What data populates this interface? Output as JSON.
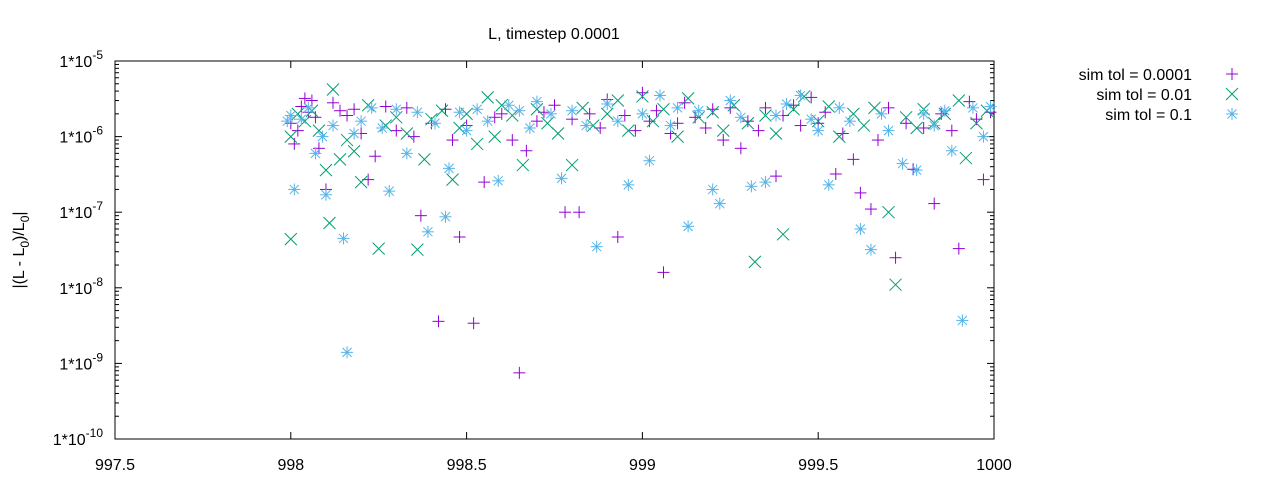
{
  "chart_data": {
    "type": "scatter",
    "title": "L, timestep 0.0001",
    "xlabel": "",
    "ylabel": {
      "prefix": "|(L - L",
      "sub1": "0",
      "mid": ")/L",
      "sub2": "0",
      "suffix": "|"
    },
    "xlim": [
      997.5,
      1000
    ],
    "ylim": [
      1e-10,
      1e-05
    ],
    "yscale": "log",
    "grid": false,
    "legend_position": "outside-right",
    "x_ticks": [
      {
        "value": 997.5,
        "label": "997.5"
      },
      {
        "value": 998,
        "label": "998"
      },
      {
        "value": 998.5,
        "label": "998.5"
      },
      {
        "value": 999,
        "label": "999"
      },
      {
        "value": 999.5,
        "label": "999.5"
      },
      {
        "value": 1000,
        "label": "1000"
      }
    ],
    "y_ticks": [
      {
        "value": 1e-10,
        "base": "1*10",
        "exp": "-10"
      },
      {
        "value": 1e-09,
        "base": "1*10",
        "exp": "-9"
      },
      {
        "value": 1e-08,
        "base": "1*10",
        "exp": "-8"
      },
      {
        "value": 1e-07,
        "base": "1*10",
        "exp": "-7"
      },
      {
        "value": 1e-06,
        "base": "1*10",
        "exp": "-6"
      },
      {
        "value": 1e-05,
        "base": "1*10",
        "exp": "-5"
      }
    ],
    "series": [
      {
        "name": "sim tol = 0.0001",
        "marker": "plus",
        "color": "#9400d3",
        "points": [
          [
            998.0,
            1.5e-06
          ],
          [
            998.01,
            8e-07
          ],
          [
            998.02,
            1.2e-06
          ],
          [
            998.03,
            2.5e-06
          ],
          [
            998.04,
            3.2e-06
          ],
          [
            998.05,
            2.1e-06
          ],
          [
            998.06,
            3e-06
          ],
          [
            998.07,
            1.8e-06
          ],
          [
            998.08,
            7e-07
          ],
          [
            998.1,
            2e-07
          ],
          [
            998.12,
            2.8e-06
          ],
          [
            998.14,
            2.2e-06
          ],
          [
            998.16,
            1.9e-06
          ],
          [
            998.18,
            2.3e-06
          ],
          [
            998.2,
            1.1e-06
          ],
          [
            998.22,
            2.7e-07
          ],
          [
            998.24,
            5.5e-07
          ],
          [
            998.27,
            2.5e-06
          ],
          [
            998.3,
            1.2e-06
          ],
          [
            998.33,
            2.4e-06
          ],
          [
            998.35,
            1e-06
          ],
          [
            998.37,
            9e-08
          ],
          [
            998.4,
            1.5e-06
          ],
          [
            998.42,
            3.6e-09
          ],
          [
            998.44,
            2.3e-06
          ],
          [
            998.46,
            9e-07
          ],
          [
            998.48,
            4.7e-08
          ],
          [
            998.5,
            1.4e-06
          ],
          [
            998.52,
            3.4e-09
          ],
          [
            998.55,
            2.5e-07
          ],
          [
            998.58,
            1.8e-06
          ],
          [
            998.6,
            2e-06
          ],
          [
            998.63,
            9e-07
          ],
          [
            998.65,
            7.5e-10
          ],
          [
            998.67,
            6.5e-07
          ],
          [
            998.7,
            1.6e-06
          ],
          [
            998.72,
            2.1e-06
          ],
          [
            998.75,
            2.6e-06
          ],
          [
            998.78,
            1e-07
          ],
          [
            998.8,
            1.7e-06
          ],
          [
            998.82,
            1e-07
          ],
          [
            998.85,
            2e-06
          ],
          [
            998.88,
            1.3e-06
          ],
          [
            998.9,
            3.1e-06
          ],
          [
            998.93,
            4.7e-08
          ],
          [
            998.95,
            1.9e-06
          ],
          [
            998.98,
            1.2e-06
          ],
          [
            999.0,
            3.8e-06
          ],
          [
            999.02,
            1.6e-06
          ],
          [
            999.04,
            2.2e-06
          ],
          [
            999.06,
            1.6e-08
          ],
          [
            999.08,
            1.1e-06
          ],
          [
            999.1,
            1.5e-06
          ],
          [
            999.12,
            2.8e-06
          ],
          [
            999.15,
            1.8e-06
          ],
          [
            999.18,
            1.3e-06
          ],
          [
            999.2,
            2.3e-06
          ],
          [
            999.23,
            9e-07
          ],
          [
            999.25,
            2.4e-06
          ],
          [
            999.28,
            7e-07
          ],
          [
            999.3,
            1.6e-06
          ],
          [
            999.33,
            1.2e-06
          ],
          [
            999.35,
            2.4e-06
          ],
          [
            999.38,
            3e-07
          ],
          [
            999.4,
            1.9e-06
          ],
          [
            999.43,
            2.6e-06
          ],
          [
            999.45,
            1.4e-06
          ],
          [
            999.48,
            3.3e-06
          ],
          [
            999.5,
            1.5e-06
          ],
          [
            999.52,
            2.1e-06
          ],
          [
            999.55,
            3.2e-07
          ],
          [
            999.57,
            1.1e-06
          ],
          [
            999.6,
            5e-07
          ],
          [
            999.62,
            1.8e-07
          ],
          [
            999.65,
            1.1e-07
          ],
          [
            999.67,
            9e-07
          ],
          [
            999.7,
            2.4e-06
          ],
          [
            999.72,
            2.5e-08
          ],
          [
            999.75,
            1.5e-06
          ],
          [
            999.77,
            3.7e-07
          ],
          [
            999.8,
            1.3e-06
          ],
          [
            999.83,
            1.3e-07
          ],
          [
            999.85,
            2e-06
          ],
          [
            999.88,
            1.2e-06
          ],
          [
            999.9,
            3.3e-08
          ],
          [
            999.93,
            2.9e-06
          ],
          [
            999.95,
            1.7e-06
          ],
          [
            999.97,
            2.7e-07
          ],
          [
            999.99,
            2.1e-06
          ]
        ]
      },
      {
        "name": "sim tol = 0.01",
        "marker": "cross",
        "color": "#009e73",
        "points": [
          [
            998.0,
            1e-06
          ],
          [
            998.0,
            4.4e-08
          ],
          [
            998.02,
            2e-06
          ],
          [
            998.04,
            1.6e-06
          ],
          [
            998.06,
            2.2e-06
          ],
          [
            998.08,
            1.2e-06
          ],
          [
            998.1,
            3.6e-07
          ],
          [
            998.11,
            7.2e-08
          ],
          [
            998.12,
            4.2e-06
          ],
          [
            998.14,
            5e-07
          ],
          [
            998.16,
            9e-07
          ],
          [
            998.18,
            6.4e-07
          ],
          [
            998.2,
            2.5e-07
          ],
          [
            998.22,
            2.6e-06
          ],
          [
            998.25,
            3.3e-08
          ],
          [
            998.27,
            1.4e-06
          ],
          [
            998.3,
            1.8e-06
          ],
          [
            998.33,
            1.1e-06
          ],
          [
            998.36,
            3.2e-08
          ],
          [
            998.38,
            5e-07
          ],
          [
            998.4,
            1.7e-06
          ],
          [
            998.43,
            2.2e-06
          ],
          [
            998.46,
            2.7e-07
          ],
          [
            998.48,
            1.3e-06
          ],
          [
            998.5,
            2e-06
          ],
          [
            998.53,
            8e-07
          ],
          [
            998.56,
            3.3e-06
          ],
          [
            998.58,
            1e-06
          ],
          [
            998.6,
            2.6e-06
          ],
          [
            998.63,
            1.9e-06
          ],
          [
            998.66,
            4.2e-07
          ],
          [
            998.7,
            2.3e-06
          ],
          [
            998.73,
            1.5e-06
          ],
          [
            998.76,
            1.1e-06
          ],
          [
            998.8,
            4.2e-07
          ],
          [
            998.83,
            2.4e-06
          ],
          [
            998.86,
            1.4e-06
          ],
          [
            998.9,
            2e-06
          ],
          [
            998.93,
            3e-06
          ],
          [
            998.96,
            1.2e-06
          ],
          [
            999.0,
            3.4e-06
          ],
          [
            999.03,
            1.6e-06
          ],
          [
            999.06,
            2.3e-06
          ],
          [
            999.1,
            1e-06
          ],
          [
            999.13,
            3.2e-06
          ],
          [
            999.16,
            1.8e-06
          ],
          [
            999.2,
            2.1e-06
          ],
          [
            999.23,
            1.2e-06
          ],
          [
            999.26,
            2.6e-06
          ],
          [
            999.3,
            1.5e-06
          ],
          [
            999.32,
            2.2e-08
          ],
          [
            999.35,
            1.9e-06
          ],
          [
            999.38,
            1.1e-06
          ],
          [
            999.4,
            5.1e-08
          ],
          [
            999.43,
            2.3e-06
          ],
          [
            999.46,
            3.4e-06
          ],
          [
            999.5,
            1.6e-06
          ],
          [
            999.53,
            2.5e-06
          ],
          [
            999.56,
            1e-06
          ],
          [
            999.6,
            2e-06
          ],
          [
            999.63,
            1.4e-06
          ],
          [
            999.66,
            2.4e-06
          ],
          [
            999.7,
            1e-07
          ],
          [
            999.72,
            1.1e-08
          ],
          [
            999.75,
            1.8e-06
          ],
          [
            999.78,
            1.3e-06
          ],
          [
            999.8,
            2.3e-06
          ],
          [
            999.83,
            1.5e-06
          ],
          [
            999.86,
            2e-06
          ],
          [
            999.9,
            3e-06
          ],
          [
            999.92,
            5.2e-07
          ],
          [
            999.95,
            1.5e-06
          ],
          [
            999.98,
            2.2e-06
          ]
        ]
      },
      {
        "name": "sim tol = 0.1",
        "marker": "star",
        "color": "#56b4e9",
        "points": [
          [
            997.99,
            1.6e-06
          ],
          [
            998.0,
            1.9e-06
          ],
          [
            998.01,
            2e-07
          ],
          [
            998.03,
            1.7e-06
          ],
          [
            998.05,
            2.4e-06
          ],
          [
            998.07,
            6e-07
          ],
          [
            998.09,
            1e-06
          ],
          [
            998.1,
            1.7e-07
          ],
          [
            998.12,
            1.4e-06
          ],
          [
            998.15,
            4.5e-08
          ],
          [
            998.16,
            1.4e-09
          ],
          [
            998.18,
            1.1e-06
          ],
          [
            998.2,
            1.6e-06
          ],
          [
            998.23,
            2.4e-06
          ],
          [
            998.26,
            1.3e-06
          ],
          [
            998.28,
            1.9e-07
          ],
          [
            998.3,
            2.3e-06
          ],
          [
            998.33,
            6e-07
          ],
          [
            998.36,
            2.1e-06
          ],
          [
            998.39,
            5.5e-08
          ],
          [
            998.41,
            1.5e-06
          ],
          [
            998.44,
            8.7e-08
          ],
          [
            998.45,
            3.8e-07
          ],
          [
            998.48,
            2.1e-06
          ],
          [
            998.5,
            1.2e-06
          ],
          [
            998.53,
            2.3e-06
          ],
          [
            998.56,
            1.6e-06
          ],
          [
            998.59,
            2.6e-07
          ],
          [
            998.62,
            2.6e-06
          ],
          [
            998.65,
            2.2e-06
          ],
          [
            998.68,
            1.3e-06
          ],
          [
            998.7,
            2.9e-06
          ],
          [
            998.74,
            2e-06
          ],
          [
            998.77,
            2.8e-07
          ],
          [
            998.8,
            2.2e-06
          ],
          [
            998.84,
            1.4e-06
          ],
          [
            998.87,
            3.5e-08
          ],
          [
            998.9,
            2.7e-06
          ],
          [
            998.93,
            1.6e-06
          ],
          [
            998.96,
            2.3e-07
          ],
          [
            999.0,
            2e-06
          ],
          [
            999.02,
            4.8e-07
          ],
          [
            999.05,
            3.5e-06
          ],
          [
            999.08,
            1.4e-06
          ],
          [
            999.1,
            2.4e-06
          ],
          [
            999.13,
            6.5e-08
          ],
          [
            999.16,
            2.2e-06
          ],
          [
            999.2,
            2e-07
          ],
          [
            999.22,
            1.3e-07
          ],
          [
            999.25,
            3e-06
          ],
          [
            999.28,
            1.8e-06
          ],
          [
            999.31,
            2.2e-07
          ],
          [
            999.35,
            2.5e-07
          ],
          [
            999.38,
            1.9e-06
          ],
          [
            999.41,
            2.7e-06
          ],
          [
            999.45,
            3.5e-06
          ],
          [
            999.48,
            1.7e-06
          ],
          [
            999.5,
            1.2e-06
          ],
          [
            999.53,
            2.3e-07
          ],
          [
            999.56,
            2.4e-06
          ],
          [
            999.59,
            1.6e-06
          ],
          [
            999.62,
            6e-08
          ],
          [
            999.65,
            3.2e-08
          ],
          [
            999.68,
            2e-06
          ],
          [
            999.7,
            1.2e-06
          ],
          [
            999.74,
            4.4e-07
          ],
          [
            999.78,
            3.6e-07
          ],
          [
            999.8,
            2e-06
          ],
          [
            999.83,
            1.4e-06
          ],
          [
            999.86,
            2.2e-06
          ],
          [
            999.88,
            6.5e-07
          ],
          [
            999.91,
            3.7e-09
          ],
          [
            999.94,
            2.4e-06
          ],
          [
            999.97,
            1e-06
          ],
          [
            999.99,
            2.5e-06
          ]
        ]
      }
    ]
  }
}
